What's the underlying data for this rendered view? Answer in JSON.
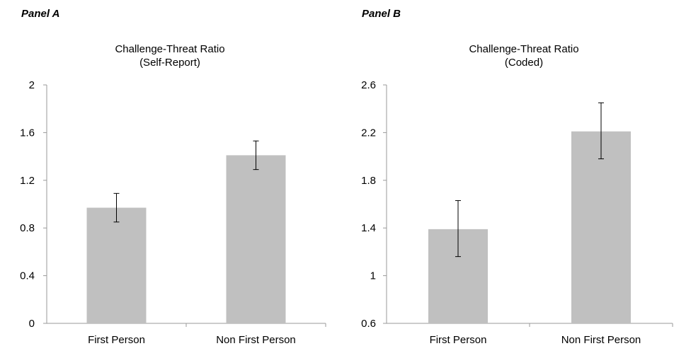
{
  "panels": [
    {
      "label": "Panel A",
      "title_line1": "Challenge-Threat Ratio",
      "title_line2": "(Self-Report)"
    },
    {
      "label": "Panel B",
      "title_line1": "Challenge-Threat Ratio",
      "title_line2": "(Coded)"
    }
  ],
  "chart_data": [
    {
      "type": "bar",
      "title": "Challenge-Threat Ratio (Self-Report)",
      "categories": [
        "First Person",
        "Non First Person"
      ],
      "values": [
        0.97,
        1.41
      ],
      "error_low": [
        0.85,
        1.29
      ],
      "error_high": [
        1.09,
        1.53
      ],
      "ylim": [
        0,
        2
      ],
      "yticks": [
        "0",
        "0.4",
        "0.8",
        "1.2",
        "1.6",
        "2"
      ],
      "bar_color": "#c0c0c0",
      "grid": false,
      "legend": "none"
    },
    {
      "type": "bar",
      "title": "Challenge-Threat Ratio (Coded)",
      "categories": [
        "First Person",
        "Non First Person"
      ],
      "values": [
        1.39,
        2.21
      ],
      "error_low": [
        1.16,
        1.98
      ],
      "error_high": [
        1.63,
        2.45
      ],
      "ylim": [
        0.6,
        2.6
      ],
      "yticks": [
        "0.6",
        "1",
        "1.4",
        "1.8",
        "2.2",
        "2.6"
      ],
      "bar_color": "#c0c0c0",
      "grid": false,
      "legend": "none"
    }
  ]
}
